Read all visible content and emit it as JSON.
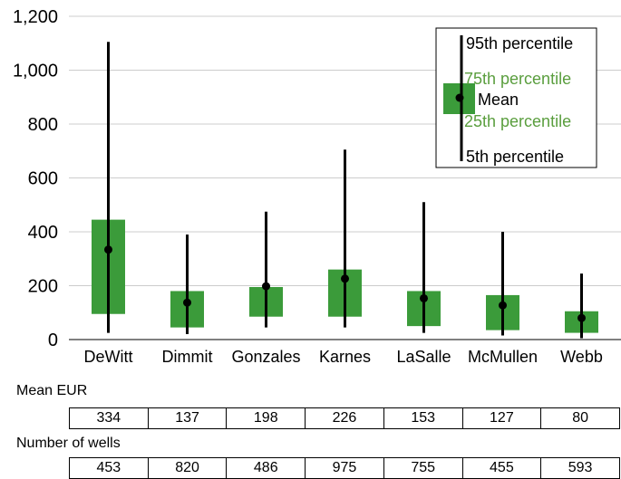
{
  "chart_data": {
    "type": "box",
    "categories": [
      "DeWitt",
      "Dimmit",
      "Gonzales",
      "Karnes",
      "LaSalle",
      "McMullen",
      "Webb"
    ],
    "series": [
      {
        "name": "95th percentile",
        "values": [
          1105,
          390,
          475,
          705,
          510,
          400,
          245
        ]
      },
      {
        "name": "75th percentile",
        "values": [
          445,
          180,
          195,
          260,
          180,
          165,
          105
        ]
      },
      {
        "name": "Mean",
        "values": [
          334,
          137,
          198,
          226,
          153,
          127,
          80
        ]
      },
      {
        "name": "25th percentile",
        "values": [
          95,
          45,
          85,
          85,
          50,
          35,
          25
        ]
      },
      {
        "name": "5th percentile",
        "values": [
          25,
          20,
          45,
          45,
          25,
          15,
          5
        ]
      }
    ],
    "ylim": [
      0,
      1200
    ],
    "yticks": [
      "0",
      "200",
      "400",
      "600",
      "800",
      "1,000",
      "1,200"
    ],
    "ytick_values": [
      0,
      200,
      400,
      600,
      800,
      1000,
      1200
    ],
    "grid": "horizontal",
    "legend_position": "top-right",
    "colors": {
      "box": "#3b9b3a",
      "whisker": "#000000",
      "percentile_text": "#5a9e3e",
      "grid": "#cccccc"
    }
  },
  "legend": {
    "p95": "95th percentile",
    "p75": "75th percentile",
    "mean": "Mean",
    "p25": "25th percentile",
    "p5": "5th percentile"
  },
  "table": {
    "mean_title": "Mean EUR",
    "mean_values": [
      "334",
      "137",
      "198",
      "226",
      "153",
      "127",
      "80"
    ],
    "wells_title": "Number of wells",
    "wells_values": [
      "453",
      "820",
      "486",
      "975",
      "755",
      "455",
      "593"
    ]
  }
}
